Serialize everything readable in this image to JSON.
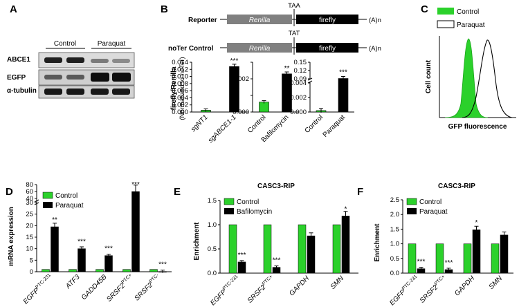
{
  "colors": {
    "green": "#2bd12b",
    "black": "#000000",
    "reporter_grey": "#808080",
    "outline": "#000000"
  },
  "panel_a": {
    "letter": "A",
    "groups": [
      "Control",
      "Paraquat"
    ],
    "rows": [
      "ABCE1",
      "EGFP",
      "α-tubulin"
    ]
  },
  "panel_b": {
    "letter": "B",
    "reporter": {
      "label": "Reporter",
      "stop": "TAA",
      "seg1": "Renilla",
      "seg2": "firefly",
      "tail": "(A)n"
    },
    "noter": {
      "label": "noTer Control",
      "stop": "TAT",
      "seg1": "Renilla",
      "seg2": "firefly",
      "tail": "(A)n"
    },
    "ylabel_1": "firefly/Renilla",
    "ylabel_2": "(Normalized to noTer)"
  },
  "panel_c": {
    "letter": "C",
    "legend": [
      "Control",
      "Paraquat"
    ],
    "xlabel": "GFP fluorescence",
    "ylabel": "Cell count"
  },
  "panel_d": {
    "letter": "D",
    "ylabel": "mRNA expression"
  },
  "panel_e": {
    "letter": "E",
    "title": "CASC3-RIP",
    "ylabel": "Enrichment"
  },
  "panel_f": {
    "letter": "F",
    "title": "CASC3-RIP",
    "ylabel": "Enrichment"
  },
  "chart_data": [
    {
      "id": "B1",
      "type": "bar",
      "categories": [
        "sgNT1",
        "sgABCE1-1"
      ],
      "values": [
        0.0005,
        0.0128
      ],
      "colors": [
        "green",
        "black"
      ],
      "ylim": [
        0,
        0.014
      ],
      "yticks": [
        0.0,
        0.002,
        0.004,
        0.006,
        0.008,
        0.01,
        0.012,
        0.014
      ],
      "ytick_labels": [
        "0.000",
        "0.002",
        "0.004",
        "0.006",
        "0.008",
        "0.010",
        "0.012",
        "0.014"
      ],
      "sig": [
        "",
        "***"
      ]
    },
    {
      "id": "B2",
      "type": "bar",
      "categories": [
        "Control",
        "Bafilomycin"
      ],
      "values": [
        0.0006,
        0.0023
      ],
      "colors": [
        "green",
        "black"
      ],
      "ylim": [
        0,
        0.003
      ],
      "yticks": [
        0.0,
        0.001,
        0.002,
        0.003
      ],
      "ytick_labels": [
        "0.000",
        "",
        "0.002",
        ""
      ],
      "sig": [
        "",
        "**"
      ]
    },
    {
      "id": "B3",
      "type": "bar",
      "categories": [
        "Control",
        "Paraquat"
      ],
      "values": [
        0.0002,
        0.006
      ],
      "colors": [
        "green",
        "black"
      ],
      "broken_axis": true,
      "ytick_labels": [
        "0.000",
        "0.002",
        "0.004",
        "0.09",
        "0.12",
        "0.15"
      ],
      "sig": [
        "",
        "***"
      ]
    },
    {
      "id": "C",
      "type": "area",
      "series": [
        {
          "name": "Control",
          "color": "green"
        },
        {
          "name": "Paraquat",
          "color": "black"
        }
      ]
    },
    {
      "id": "D",
      "type": "bar",
      "categories": [
        "EGFP PTC-231",
        "ATF3",
        "GADD45B",
        "SRSF2 PTC+",
        "SRSF2 PTC-"
      ],
      "series": [
        {
          "name": "Control",
          "values": [
            1,
            1,
            1,
            1,
            1
          ]
        },
        {
          "name": "Paraquat",
          "values": [
            19.5,
            10,
            7,
            60,
            0.1
          ]
        }
      ],
      "broken_axis": true,
      "ytick_labels": [
        "0",
        "5",
        "10",
        "15",
        "20",
        "25",
        "30",
        "40",
        "60",
        "80"
      ],
      "sig": [
        "**",
        "***",
        "***",
        "***",
        "***"
      ]
    },
    {
      "id": "E",
      "type": "bar",
      "categories": [
        "EGFP PTC-231",
        "SRSF2 PTC+",
        "GAPDH",
        "SMN"
      ],
      "series": [
        {
          "name": "Control",
          "values": [
            1,
            1,
            1,
            1
          ]
        },
        {
          "name": "Bafilomycin",
          "values": [
            0.23,
            0.12,
            0.77,
            1.18
          ]
        }
      ],
      "ylim": [
        0,
        1.5
      ],
      "ytick_labels": [
        "0.0",
        "0.5",
        "1.0",
        "1.5"
      ],
      "sig": [
        "***",
        "***",
        "",
        "*"
      ]
    },
    {
      "id": "F",
      "type": "bar",
      "categories": [
        "EGFP PTC-231",
        "SRSF2 PTC+",
        "GAPDH",
        "SMN"
      ],
      "series": [
        {
          "name": "Control",
          "values": [
            1,
            1,
            1,
            1
          ]
        },
        {
          "name": "Paraquat",
          "values": [
            0.15,
            0.12,
            1.48,
            1.3
          ]
        }
      ],
      "ylim": [
        0,
        2.5
      ],
      "ytick_labels": [
        "0.0",
        "0.5",
        "1.0",
        "1.5",
        "2.0",
        "2.5"
      ],
      "sig": [
        "***",
        "***",
        "*",
        ""
      ]
    }
  ]
}
